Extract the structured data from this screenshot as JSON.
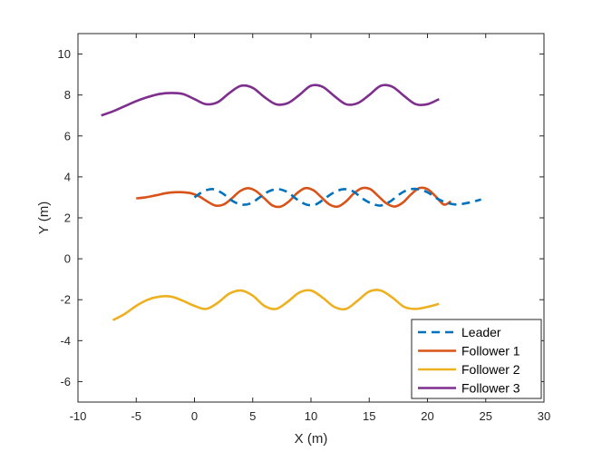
{
  "chart_data": {
    "type": "line",
    "title": "",
    "xlabel": "X (m)",
    "ylabel": "Y (m)",
    "xlim": [
      -10,
      30
    ],
    "ylim": [
      -7,
      11
    ],
    "xticks": [
      -10,
      -5,
      0,
      5,
      10,
      15,
      20,
      25,
      30
    ],
    "yticks": [
      -6,
      -4,
      -2,
      0,
      2,
      4,
      6,
      8,
      10
    ],
    "grid": false,
    "legend_position": "bottom-right",
    "series": [
      {
        "name": "Leader",
        "color": "#0072BD",
        "dash": "dashed",
        "x": [
          0.0,
          0.8,
          1.6,
          2.4,
          3.2,
          4.0,
          4.8,
          5.6,
          6.4,
          7.2,
          8.0,
          8.8,
          9.6,
          10.4,
          11.2,
          12.0,
          12.8,
          13.6,
          14.4,
          15.2,
          16.0,
          16.8,
          17.6,
          18.4,
          19.2,
          20.0,
          20.8,
          21.6,
          22.4,
          23.2,
          24.0,
          24.6
        ],
        "y": [
          3.0,
          3.3,
          3.4,
          3.2,
          2.85,
          2.65,
          2.7,
          3.0,
          3.3,
          3.4,
          3.25,
          2.9,
          2.65,
          2.65,
          2.95,
          3.25,
          3.4,
          3.3,
          2.95,
          2.7,
          2.6,
          2.8,
          3.15,
          3.38,
          3.4,
          3.25,
          2.95,
          2.75,
          2.65,
          2.7,
          2.8,
          2.9
        ]
      },
      {
        "name": "Follower 1",
        "color": "#D95319",
        "dash": "solid",
        "x": [
          -5.0,
          -4.2,
          -3.3,
          -2.5,
          -1.7,
          -1.0,
          -0.3,
          0.4,
          1.1,
          1.8,
          2.5,
          3.2,
          3.9,
          4.6,
          5.3,
          6.0,
          6.7,
          7.4,
          8.1,
          8.8,
          9.5,
          10.2,
          10.9,
          11.6,
          12.3,
          13.0,
          13.7,
          14.4,
          15.1,
          15.8,
          16.5,
          17.2,
          17.9,
          18.6,
          19.3,
          20.0,
          20.7,
          21.4,
          22.0
        ],
        "y": [
          2.95,
          3.0,
          3.1,
          3.2,
          3.25,
          3.25,
          3.2,
          3.05,
          2.8,
          2.6,
          2.65,
          2.95,
          3.3,
          3.45,
          3.3,
          2.95,
          2.6,
          2.55,
          2.8,
          3.2,
          3.45,
          3.35,
          3.0,
          2.65,
          2.55,
          2.8,
          3.2,
          3.45,
          3.4,
          3.05,
          2.7,
          2.55,
          2.75,
          3.15,
          3.45,
          3.4,
          3.05,
          2.65,
          2.8
        ]
      },
      {
        "name": "Follower 2",
        "color": "#EDB120",
        "dash": "solid",
        "x": [
          -7.0,
          -6.0,
          -5.0,
          -4.0,
          -3.0,
          -2.0,
          -1.0,
          0.0,
          1.0,
          2.0,
          3.0,
          4.0,
          5.0,
          6.0,
          7.0,
          8.0,
          9.0,
          10.0,
          11.0,
          12.0,
          13.0,
          14.0,
          15.0,
          16.0,
          17.0,
          18.0,
          19.0,
          20.0,
          21.0
        ],
        "y": [
          -3.0,
          -2.7,
          -2.3,
          -2.0,
          -1.85,
          -1.85,
          -2.05,
          -2.3,
          -2.45,
          -2.15,
          -1.7,
          -1.55,
          -1.8,
          -2.3,
          -2.45,
          -2.1,
          -1.65,
          -1.55,
          -1.9,
          -2.35,
          -2.45,
          -2.05,
          -1.6,
          -1.55,
          -1.9,
          -2.35,
          -2.45,
          -2.35,
          -2.2
        ]
      },
      {
        "name": "Follower 3",
        "color": "#7E2F8E",
        "dash": "solid",
        "x": [
          -8.0,
          -7.0,
          -6.0,
          -5.0,
          -4.0,
          -3.0,
          -2.0,
          -1.0,
          0.0,
          1.0,
          2.0,
          3.0,
          4.0,
          5.0,
          6.0,
          7.0,
          8.0,
          9.0,
          10.0,
          11.0,
          12.0,
          13.0,
          14.0,
          15.0,
          16.0,
          17.0,
          18.0,
          19.0,
          20.0,
          21.0
        ],
        "y": [
          7.0,
          7.2,
          7.45,
          7.7,
          7.9,
          8.05,
          8.1,
          8.05,
          7.8,
          7.55,
          7.65,
          8.1,
          8.45,
          8.35,
          7.9,
          7.55,
          7.6,
          8.0,
          8.45,
          8.4,
          7.95,
          7.55,
          7.6,
          8.0,
          8.45,
          8.4,
          7.95,
          7.55,
          7.55,
          7.8
        ]
      }
    ]
  }
}
